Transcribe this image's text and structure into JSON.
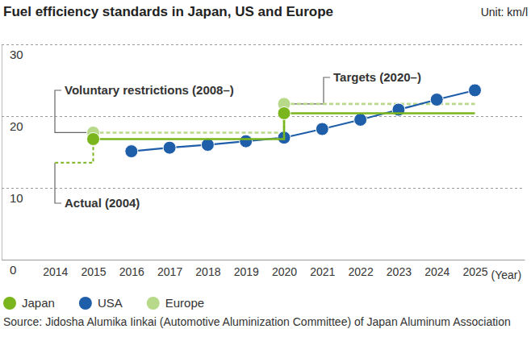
{
  "chart_data": {
    "type": "line",
    "title": "Fuel efficiency standards in Japan, US and Europe",
    "subtitle": "Unit: km/l",
    "x_label": "(Year)",
    "x": [
      2014,
      2015,
      2016,
      2017,
      2018,
      2019,
      2020,
      2021,
      2022,
      2023,
      2024,
      2025
    ],
    "xlim": [
      2012.6,
      2026.3
    ],
    "xticks": [
      2014,
      2015,
      2016,
      2017,
      2018,
      2019,
      2020,
      2021,
      2022,
      2023,
      2024,
      2025
    ],
    "ylim": [
      0,
      30
    ],
    "yticks": [
      0,
      10,
      20,
      30
    ],
    "grid": true,
    "legend": "bottom",
    "series": [
      {
        "name": "Japan",
        "type": "step",
        "color": "#7ab51d",
        "marker": "circle",
        "line_style": "solid",
        "values": [
          null,
          16.8,
          16.8,
          16.8,
          16.8,
          16.8,
          20.4,
          20.4,
          20.4,
          20.4,
          20.4,
          20.4
        ]
      },
      {
        "name": "USA",
        "type": "line",
        "color": "#1f5ea8",
        "marker": "circle",
        "line_style": "solid",
        "values": [
          null,
          null,
          15.1,
          15.6,
          16.0,
          16.5,
          17.0,
          18.2,
          19.5,
          20.9,
          22.3,
          23.6
        ]
      },
      {
        "name": "Europe",
        "type": "step",
        "color": "#b8d98a",
        "marker": "circle",
        "line_style": "dashed",
        "values": [
          null,
          17.7,
          17.7,
          17.7,
          17.7,
          17.7,
          21.7,
          21.7,
          21.7,
          21.7,
          21.7,
          21.7
        ]
      }
    ],
    "annotations": [
      {
        "text": "Voluntary restrictions (2008–)",
        "x": 2015
      },
      {
        "text": "Targets (2020–)",
        "x": 2020
      },
      {
        "text": "Actual (2004)",
        "x": 2014,
        "value": 13.5
      }
    ],
    "source": "Source: Jidosha Alumika Iinkai (Automotive Aluminization Committee) of Japan Aluminum Association"
  }
}
